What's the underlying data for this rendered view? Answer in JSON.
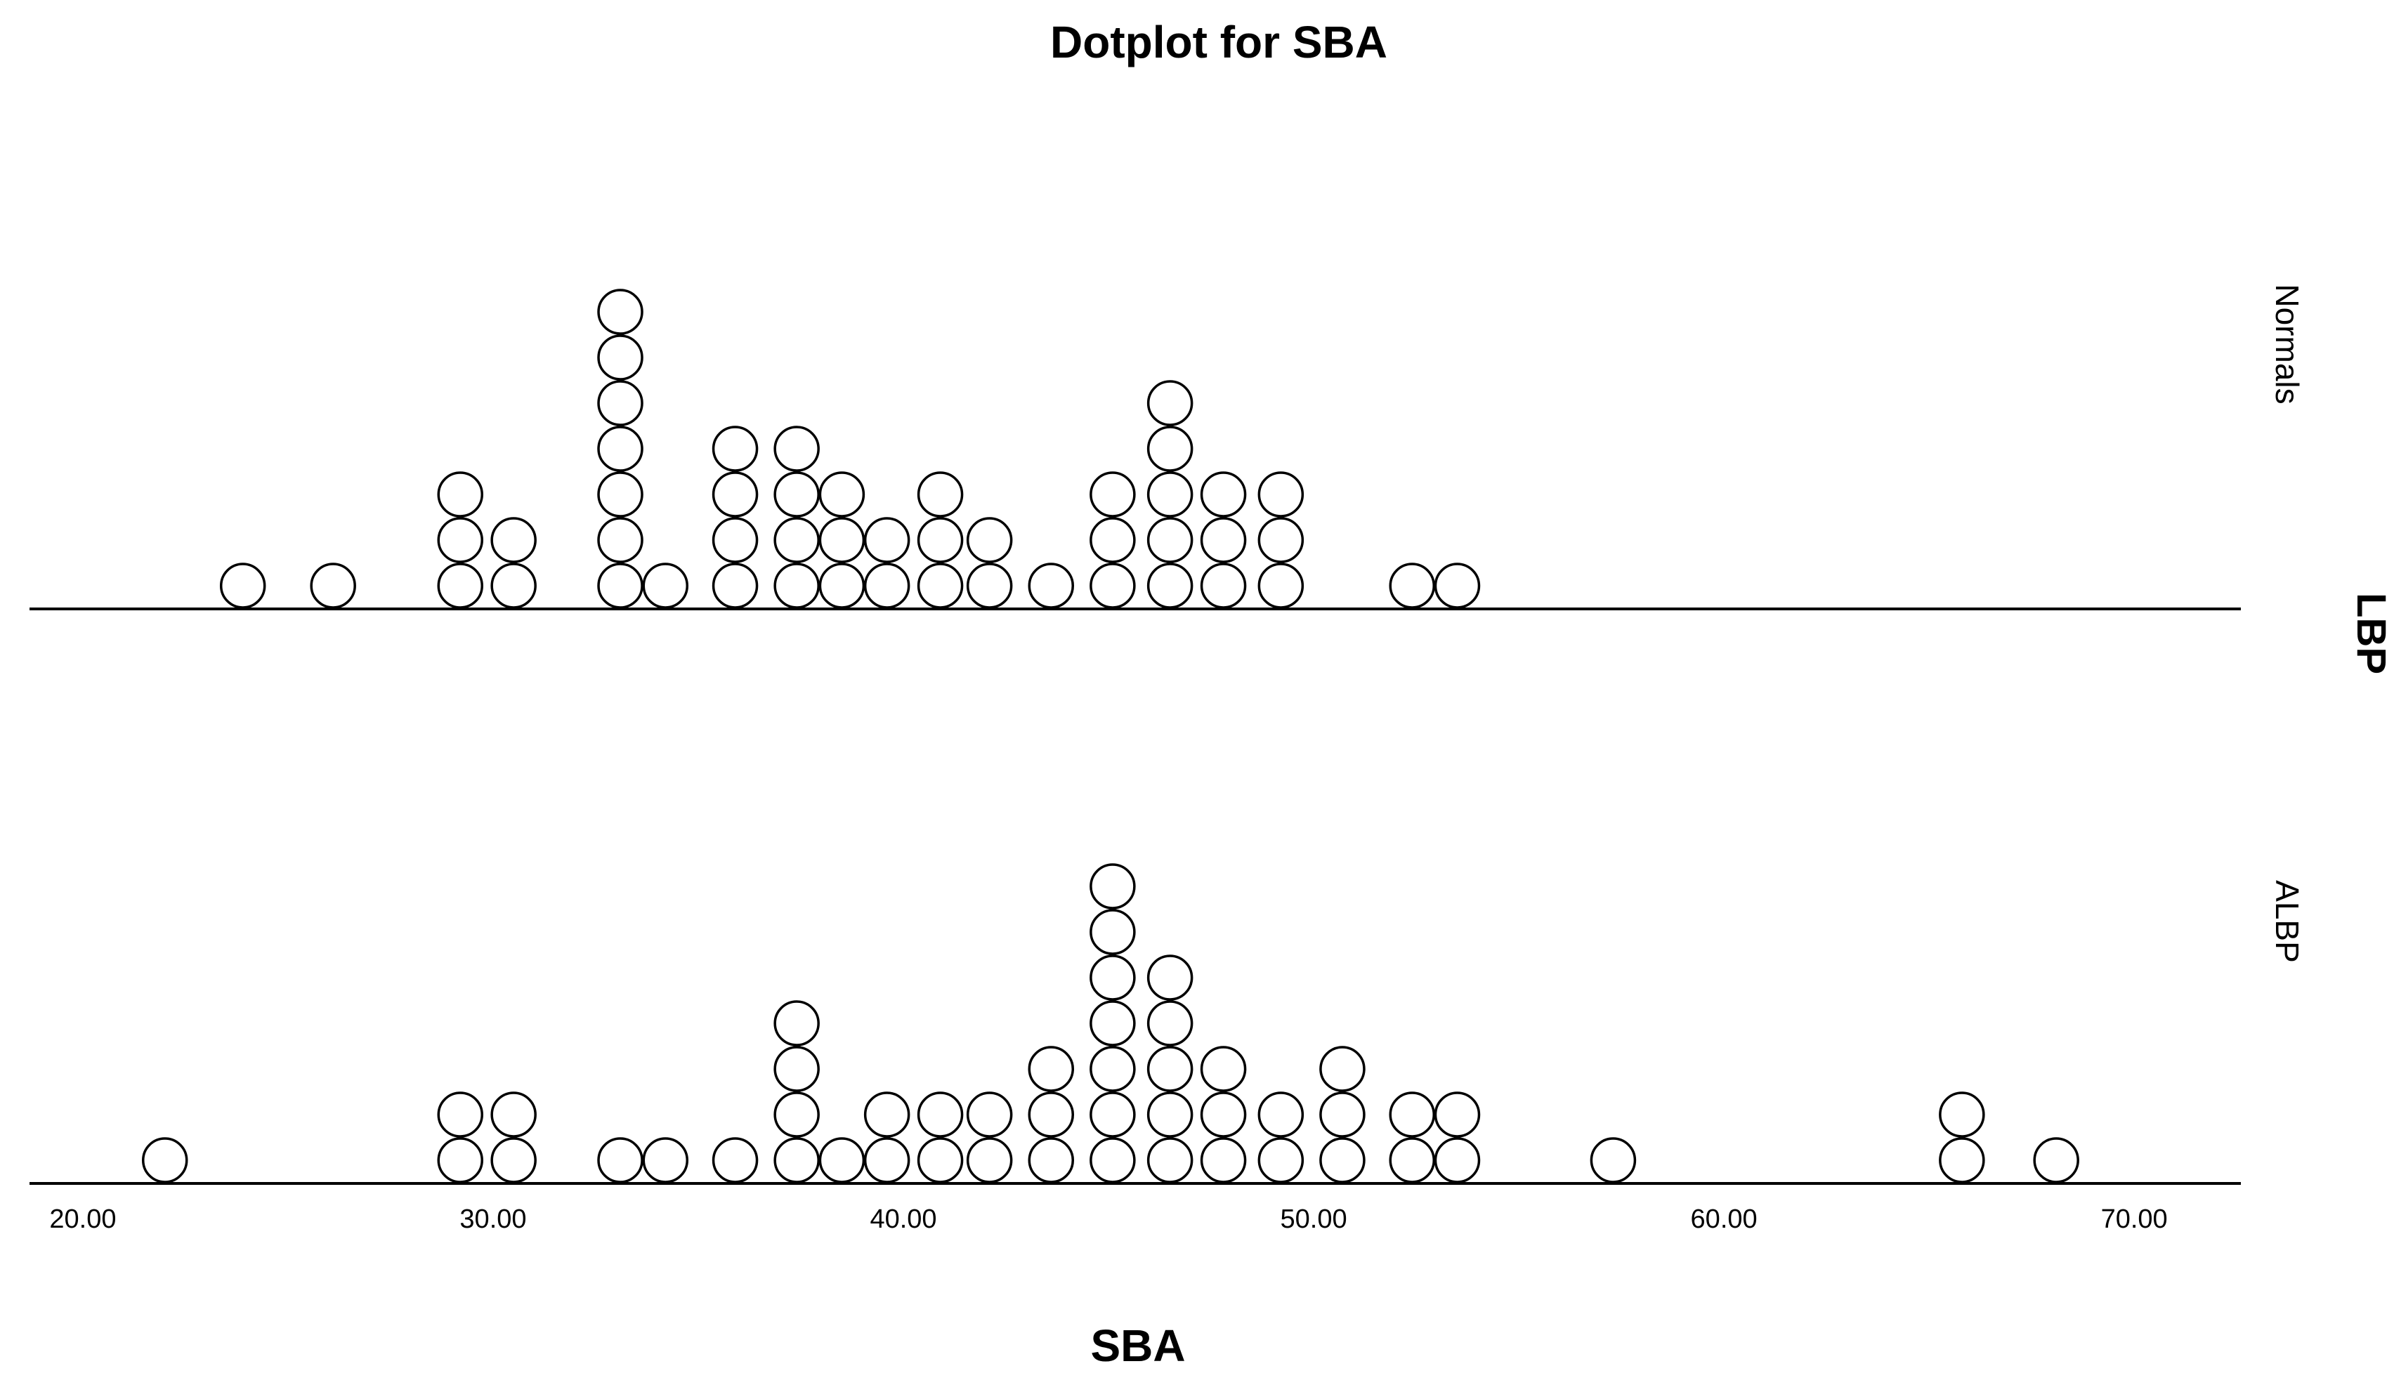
{
  "chart_data": {
    "type": "dotplot",
    "title": "Dotplot for SBA",
    "xlabel": "SBA",
    "panel_label": "LBP",
    "xlim": [
      18.7,
      72.6
    ],
    "x_ticks": [
      20,
      30,
      40,
      50,
      60,
      70
    ],
    "x_tick_labels": [
      "20.00",
      "30.00",
      "40.00",
      "50.00",
      "60.00",
      "70.00"
    ],
    "grid": false,
    "legend": "none",
    "dot_fill": "#ffffff",
    "dot_stroke": "#000000",
    "panels": [
      {
        "name": "Normals",
        "bins": [
          {
            "x": 23.9,
            "count": 1
          },
          {
            "x": 26.1,
            "count": 1
          },
          {
            "x": 29.2,
            "count": 3
          },
          {
            "x": 30.5,
            "count": 2
          },
          {
            "x": 33.1,
            "count": 7
          },
          {
            "x": 34.2,
            "count": 1
          },
          {
            "x": 35.9,
            "count": 4
          },
          {
            "x": 37.4,
            "count": 4
          },
          {
            "x": 38.5,
            "count": 3
          },
          {
            "x": 39.6,
            "count": 2
          },
          {
            "x": 40.9,
            "count": 3
          },
          {
            "x": 42.1,
            "count": 2
          },
          {
            "x": 43.6,
            "count": 1
          },
          {
            "x": 45.1,
            "count": 3
          },
          {
            "x": 46.5,
            "count": 5
          },
          {
            "x": 47.8,
            "count": 3
          },
          {
            "x": 49.2,
            "count": 3
          },
          {
            "x": 52.4,
            "count": 1
          },
          {
            "x": 53.5,
            "count": 1
          }
        ]
      },
      {
        "name": "ALBP",
        "bins": [
          {
            "x": 22.0,
            "count": 1
          },
          {
            "x": 29.2,
            "count": 2
          },
          {
            "x": 30.5,
            "count": 2
          },
          {
            "x": 33.1,
            "count": 1
          },
          {
            "x": 34.2,
            "count": 1
          },
          {
            "x": 35.9,
            "count": 1
          },
          {
            "x": 37.4,
            "count": 4
          },
          {
            "x": 38.5,
            "count": 1
          },
          {
            "x": 39.6,
            "count": 2
          },
          {
            "x": 40.9,
            "count": 2
          },
          {
            "x": 42.1,
            "count": 2
          },
          {
            "x": 43.6,
            "count": 3
          },
          {
            "x": 45.1,
            "count": 7
          },
          {
            "x": 46.5,
            "count": 5
          },
          {
            "x": 47.8,
            "count": 3
          },
          {
            "x": 49.2,
            "count": 2
          },
          {
            "x": 50.7,
            "count": 3
          },
          {
            "x": 52.4,
            "count": 2
          },
          {
            "x": 53.5,
            "count": 2
          },
          {
            "x": 57.3,
            "count": 1
          },
          {
            "x": 65.8,
            "count": 2
          },
          {
            "x": 68.1,
            "count": 1
          }
        ]
      }
    ]
  }
}
